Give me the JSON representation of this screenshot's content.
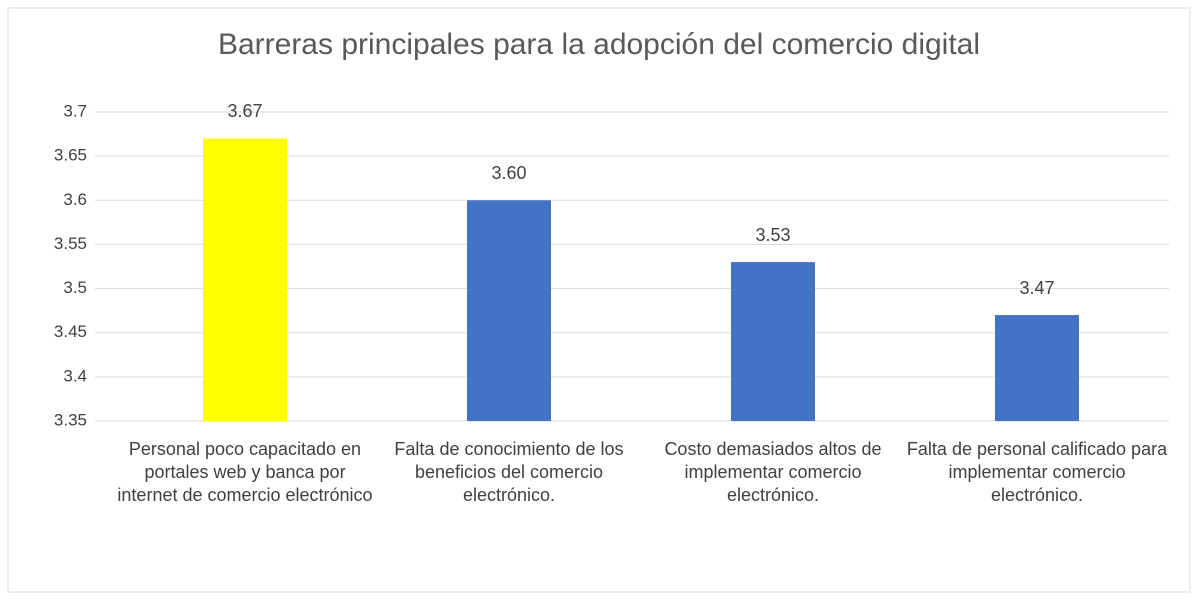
{
  "chart_data": {
    "type": "bar",
    "title": "Barreras principales para la adopción del comercio digital",
    "categories": [
      "Personal poco capacitado en portales web y banca por internet de comercio electrónico",
      "Falta de conocimiento de los beneficios del comercio electrónico.",
      "Costo demasiados altos de implementar comercio electrónico.",
      "Falta de personal calificado para implementar comercio electrónico."
    ],
    "values": [
      3.67,
      3.6,
      3.53,
      3.47
    ],
    "value_labels": [
      "3.67",
      "3.60",
      "3.53",
      "3.47"
    ],
    "colors": [
      "#ffff00",
      "#4472c4",
      "#4472c4",
      "#4472c4"
    ],
    "ylim": [
      3.35,
      3.7
    ],
    "yticks": [
      3.35,
      3.4,
      3.45,
      3.5,
      3.55,
      3.6,
      3.65,
      3.7
    ],
    "grid": true
  }
}
